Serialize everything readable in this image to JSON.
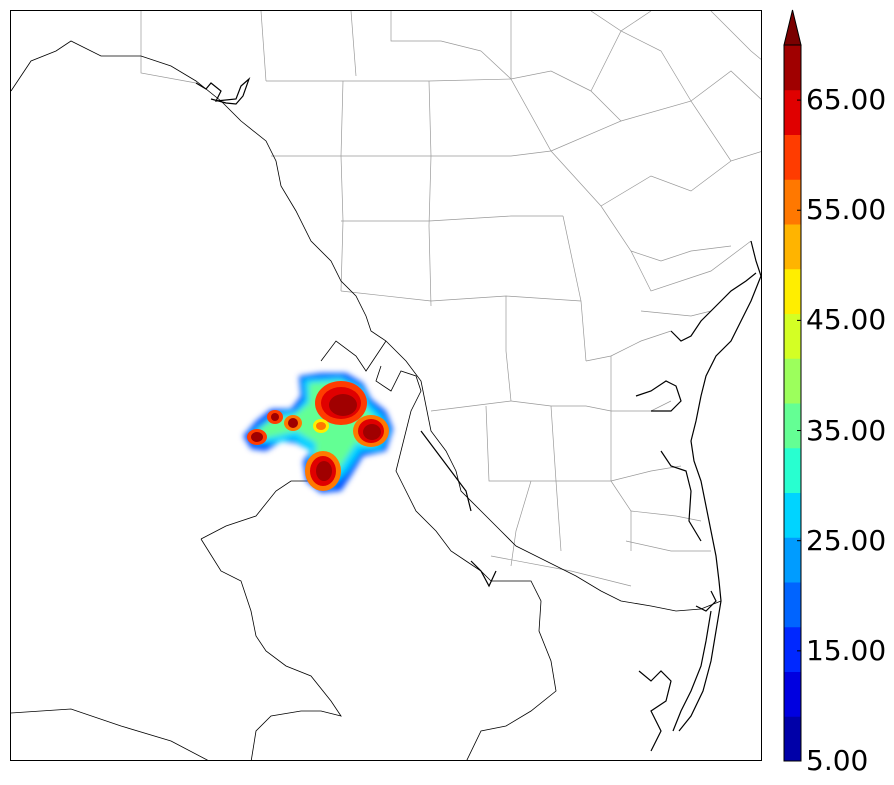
{
  "colorbar": {
    "colors": [
      "#0000a8",
      "#0000e0",
      "#0028ff",
      "#0064ff",
      "#009cff",
      "#00d4ff",
      "#28ffd0",
      "#64ff94",
      "#9cff5c",
      "#d4ff24",
      "#ffee00",
      "#ffb400",
      "#ff7800",
      "#ff3c00",
      "#e00000",
      "#a00000",
      "#7a0000"
    ],
    "tick_labels": [
      "5.00",
      "15.00",
      "25.00",
      "35.00",
      "45.00",
      "55.00",
      "65.00"
    ],
    "min": 5,
    "max": 70,
    "extend": "max"
  },
  "map": {
    "coastline_color": "#000000",
    "county_color": "#999999",
    "border_color": "#000000"
  }
}
